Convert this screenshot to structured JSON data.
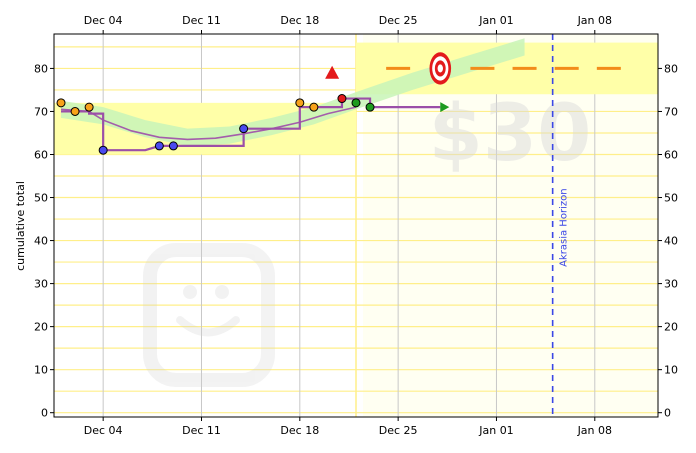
{
  "chart_data": {
    "type": "scatter",
    "ylabel": "cumulative total",
    "x_ticks": [
      "Dec 04",
      "Dec 11",
      "Dec 18",
      "Dec 25",
      "Jan 01",
      "Jan 08"
    ],
    "y_ticks": [
      0,
      10,
      20,
      30,
      40,
      50,
      60,
      70,
      80
    ],
    "ylim": [
      -1,
      88
    ],
    "xlim": [
      -3.5,
      39.5
    ],
    "x_tick_days": [
      0,
      7,
      14,
      21,
      28,
      35
    ],
    "watermark": "$30",
    "horizon": {
      "label": "Akrasia Horizon",
      "day": 32
    },
    "today_day": 18.0,
    "rolling_avg": [
      [
        -3,
        70.5
      ],
      [
        -1,
        70
      ],
      [
        0,
        68
      ],
      [
        2,
        65.5
      ],
      [
        4,
        64
      ],
      [
        6,
        63.5
      ],
      [
        8,
        63.8
      ],
      [
        10,
        64.8
      ],
      [
        12,
        66
      ],
      [
        14,
        67.5
      ],
      [
        16,
        69.5
      ],
      [
        18,
        71
      ]
    ],
    "step_line": [
      [
        -3,
        70
      ],
      [
        -1,
        70
      ],
      [
        -1,
        69.5
      ],
      [
        0,
        69.5
      ],
      [
        0,
        61
      ],
      [
        3,
        61
      ],
      [
        4,
        62
      ],
      [
        10,
        62
      ],
      [
        10,
        66
      ],
      [
        14,
        66
      ],
      [
        14,
        71
      ],
      [
        17,
        71
      ],
      [
        17,
        73
      ],
      [
        19,
        73
      ],
      [
        19,
        71
      ],
      [
        24,
        71
      ]
    ],
    "points": [
      {
        "x": -3,
        "y": 72,
        "c": "orange"
      },
      {
        "x": -2,
        "y": 70,
        "c": "orange"
      },
      {
        "x": -1,
        "y": 71,
        "c": "orange"
      },
      {
        "x": 0,
        "y": 61,
        "c": "blue"
      },
      {
        "x": 4,
        "y": 62,
        "c": "blue"
      },
      {
        "x": 5,
        "y": 62,
        "c": "blue"
      },
      {
        "x": 10,
        "y": 66,
        "c": "blue"
      },
      {
        "x": 14,
        "y": 72,
        "c": "orange"
      },
      {
        "x": 15,
        "y": 71,
        "c": "orange"
      },
      {
        "x": 17,
        "y": 73,
        "c": "red"
      },
      {
        "x": 18,
        "y": 72,
        "c": "green"
      },
      {
        "x": 19,
        "y": 71,
        "c": "green"
      }
    ],
    "future_target_value": 80,
    "future_target_days": [
      21,
      24,
      27,
      30,
      33,
      36
    ]
  }
}
